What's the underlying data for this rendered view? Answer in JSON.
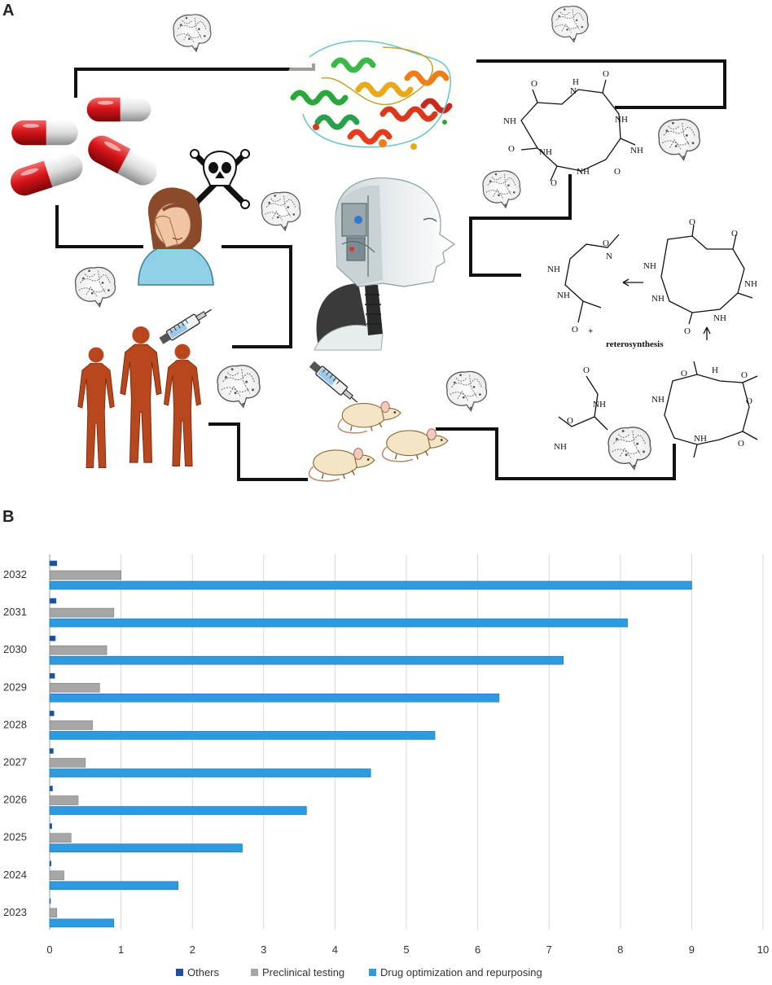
{
  "panel_labels": {
    "a": "A",
    "b": "B"
  },
  "panel_a": {
    "annotation": "reterosynthesis",
    "plus": "+",
    "atom_labels": {
      "nh": "NH",
      "n": "N",
      "h": "H",
      "o": "O"
    },
    "icons": [
      "brain-circuit-icon",
      "pill-capsule-icon",
      "skull-crossbones-icon",
      "sick-woman-icon",
      "protein-structure-icon",
      "robot-head-icon",
      "human-figure-icon",
      "syringe-icon",
      "lab-rat-icon",
      "molecule-icon"
    ]
  },
  "chart_data": {
    "type": "bar",
    "orientation": "horizontal",
    "categories": [
      "2032",
      "2031",
      "2030",
      "2029",
      "2028",
      "2027",
      "2026",
      "2025",
      "2024",
      "2023"
    ],
    "series": [
      {
        "name": "Others",
        "color": "#1f4e9c",
        "values": [
          0.1,
          0.09,
          0.08,
          0.07,
          0.06,
          0.05,
          0.04,
          0.03,
          0.02,
          0.01
        ]
      },
      {
        "name": "Preclinical testing",
        "color": "#a6a6a6",
        "values": [
          1.0,
          0.9,
          0.8,
          0.7,
          0.6,
          0.5,
          0.4,
          0.3,
          0.2,
          0.1
        ]
      },
      {
        "name": "Drug optimization and repurposing",
        "color": "#2e9be0",
        "values": [
          9.0,
          8.1,
          7.2,
          6.3,
          5.4,
          4.5,
          3.6,
          2.7,
          1.8,
          0.9
        ]
      }
    ],
    "xlim": [
      0,
      10
    ],
    "xticks": [
      "0",
      "1",
      "2",
      "3",
      "4",
      "5",
      "6",
      "7",
      "8",
      "9",
      "10"
    ],
    "grid": "vertical",
    "legend": "bottom"
  }
}
